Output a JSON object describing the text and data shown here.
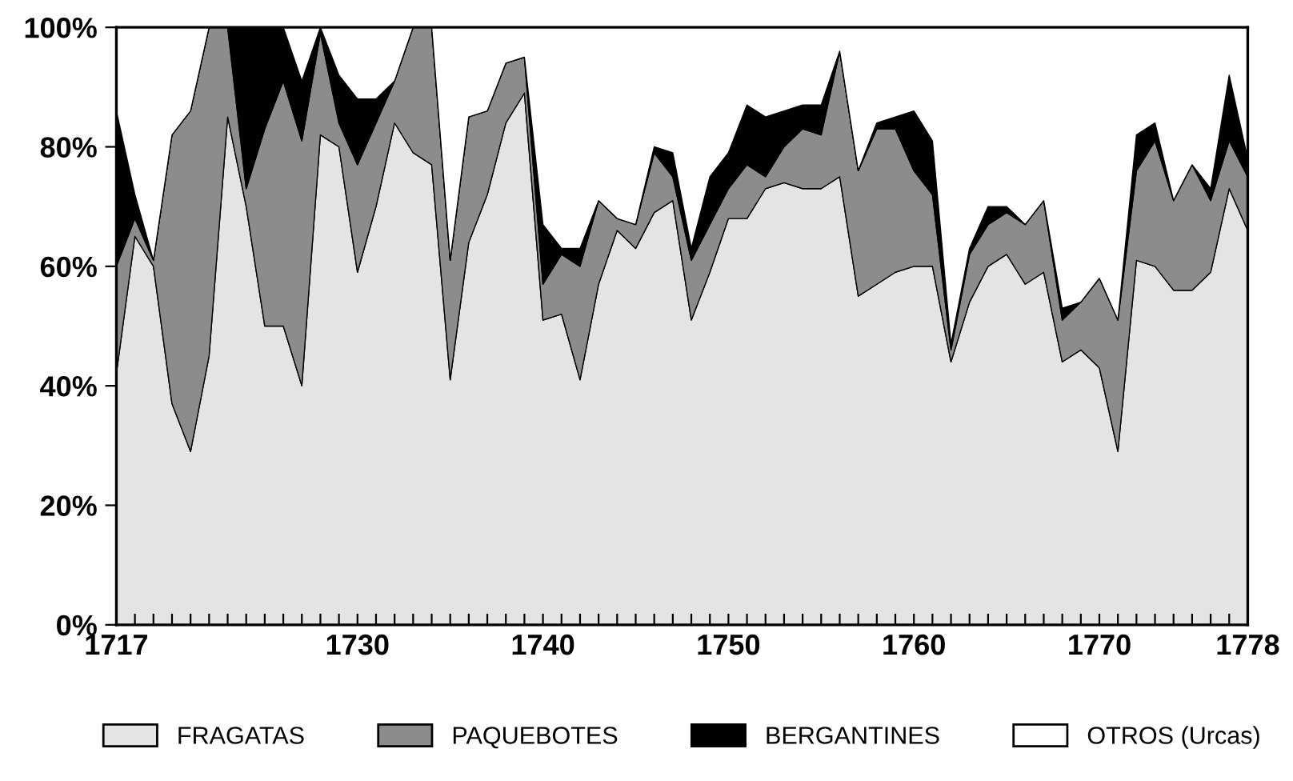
{
  "chart_data": {
    "type": "area",
    "stacked": true,
    "x": [
      1717,
      1718,
      1719,
      1720,
      1721,
      1722,
      1723,
      1724,
      1725,
      1726,
      1727,
      1728,
      1729,
      1730,
      1731,
      1732,
      1733,
      1734,
      1735,
      1736,
      1737,
      1738,
      1739,
      1740,
      1741,
      1742,
      1743,
      1744,
      1745,
      1746,
      1747,
      1748,
      1749,
      1750,
      1751,
      1752,
      1753,
      1754,
      1755,
      1756,
      1757,
      1758,
      1759,
      1760,
      1761,
      1762,
      1763,
      1764,
      1765,
      1766,
      1767,
      1768,
      1769,
      1770,
      1771,
      1772,
      1773,
      1774,
      1775,
      1776,
      1777,
      1778
    ],
    "series": [
      {
        "name": "FRAGATAS",
        "color": "#e4e4e4",
        "values": [
          42,
          65,
          60,
          37,
          29,
          45,
          85,
          70,
          50,
          50,
          40,
          82,
          80,
          59,
          70,
          84,
          79,
          77,
          41,
          64,
          72,
          84,
          89,
          51,
          52,
          41,
          57,
          66,
          63,
          69,
          71,
          51,
          59,
          68,
          68,
          73,
          74,
          73,
          73,
          75,
          55,
          57,
          59,
          60,
          60,
          44,
          54,
          60,
          62,
          57,
          59,
          44,
          46,
          43,
          29,
          61,
          60,
          56,
          56,
          59,
          73,
          66
        ]
      },
      {
        "name": "PAQUEBOTES",
        "color": "#8c8c8c",
        "values": [
          18,
          3,
          1,
          45,
          57,
          55,
          15,
          3,
          33,
          41,
          41,
          17,
          4,
          18,
          14,
          7,
          21,
          23,
          20,
          21,
          14,
          10,
          6,
          6,
          10,
          19,
          14,
          2,
          4,
          10,
          4,
          10,
          8,
          5,
          9,
          2,
          6,
          10,
          9,
          21,
          21,
          26,
          24,
          16,
          12,
          2,
          8,
          7,
          7,
          10,
          12,
          7,
          8,
          15,
          22,
          15,
          21,
          15,
          21,
          12,
          8,
          9
        ]
      },
      {
        "name": "BERGANTINES",
        "color": "#000000",
        "values": [
          26,
          4,
          0,
          0,
          0,
          0,
          0,
          27,
          17,
          9,
          10,
          1,
          8,
          11,
          4,
          0,
          0,
          0,
          0,
          0,
          0,
          0,
          0,
          10,
          1,
          3,
          0,
          0,
          0,
          1,
          4,
          2,
          8,
          6,
          10,
          10,
          6,
          4,
          5,
          0,
          0,
          1,
          2,
          10,
          9,
          1,
          1,
          3,
          1,
          0,
          0,
          2,
          0,
          0,
          0,
          6,
          3,
          0,
          0,
          2,
          11,
          3
        ]
      },
      {
        "name": "OTROS (Urcas)",
        "color": "#ffffff",
        "values": [
          14,
          28,
          39,
          18,
          14,
          0,
          0,
          0,
          0,
          0,
          9,
          0,
          8,
          12,
          12,
          9,
          0,
          0,
          39,
          15,
          14,
          6,
          5,
          33,
          37,
          37,
          29,
          32,
          33,
          20,
          21,
          37,
          25,
          21,
          13,
          15,
          14,
          13,
          13,
          4,
          24,
          16,
          15,
          14,
          19,
          53,
          37,
          30,
          30,
          33,
          29,
          47,
          46,
          42,
          49,
          18,
          16,
          29,
          23,
          27,
          8,
          22
        ]
      }
    ],
    "xlim": [
      1717,
      1778
    ],
    "xticks": [
      1717,
      {
        "value": 1718,
        "label": null
      },
      {
        "value": 1719,
        "label": null
      },
      {
        "value": 1720,
        "label": null
      },
      {
        "value": 1721,
        "label": null
      },
      {
        "value": 1722,
        "label": null
      },
      {
        "value": 1723,
        "label": null
      },
      {
        "value": 1724,
        "label": null
      },
      {
        "value": 1725,
        "label": null
      },
      {
        "value": 1726,
        "label": null
      },
      {
        "value": 1727,
        "label": null
      },
      {
        "value": 1728,
        "label": null
      },
      {
        "value": 1729,
        "label": null
      },
      1730,
      {
        "value": 1731,
        "label": null
      },
      {
        "value": 1732,
        "label": null
      },
      {
        "value": 1733,
        "label": null
      },
      {
        "value": 1734,
        "label": null
      },
      {
        "value": 1735,
        "label": null
      },
      {
        "value": 1736,
        "label": null
      },
      {
        "value": 1737,
        "label": null
      },
      {
        "value": 1738,
        "label": null
      },
      {
        "value": 1739,
        "label": null
      },
      1740,
      {
        "value": 1741,
        "label": null
      },
      {
        "value": 1742,
        "label": null
      },
      {
        "value": 1743,
        "label": null
      },
      {
        "value": 1744,
        "label": null
      },
      {
        "value": 1745,
        "label": null
      },
      {
        "value": 1746,
        "label": null
      },
      {
        "value": 1747,
        "label": null
      },
      {
        "value": 1748,
        "label": null
      },
      {
        "value": 1749,
        "label": null
      },
      1750,
      {
        "value": 1751,
        "label": null
      },
      {
        "value": 1752,
        "label": null
      },
      {
        "value": 1753,
        "label": null
      },
      {
        "value": 1754,
        "label": null
      },
      {
        "value": 1755,
        "label": null
      },
      {
        "value": 1756,
        "label": null
      },
      {
        "value": 1757,
        "label": null
      },
      {
        "value": 1758,
        "label": null
      },
      {
        "value": 1759,
        "label": null
      },
      1760,
      {
        "value": 1761,
        "label": null
      },
      {
        "value": 1762,
        "label": null
      },
      {
        "value": 1763,
        "label": null
      },
      {
        "value": 1764,
        "label": null
      },
      {
        "value": 1765,
        "label": null
      },
      {
        "value": 1766,
        "label": null
      },
      {
        "value": 1767,
        "label": null
      },
      {
        "value": 1768,
        "label": null
      },
      {
        "value": 1769,
        "label": null
      },
      1770,
      {
        "value": 1771,
        "label": null
      },
      {
        "value": 1772,
        "label": null
      },
      {
        "value": 1773,
        "label": null
      },
      {
        "value": 1774,
        "label": null
      },
      {
        "value": 1775,
        "label": null
      },
      {
        "value": 1776,
        "label": null
      },
      {
        "value": 1777,
        "label": null
      },
      1778
    ],
    "ylim": [
      0,
      100
    ],
    "yticks": [
      {
        "value": 0,
        "label": "0%"
      },
      {
        "value": 20,
        "label": "20%"
      },
      {
        "value": 40,
        "label": "40%"
      },
      {
        "value": 60,
        "label": "60%"
      },
      {
        "value": 80,
        "label": "80%"
      },
      {
        "value": 100,
        "label": "100%"
      }
    ],
    "grid": false,
    "legend": "bottom"
  }
}
